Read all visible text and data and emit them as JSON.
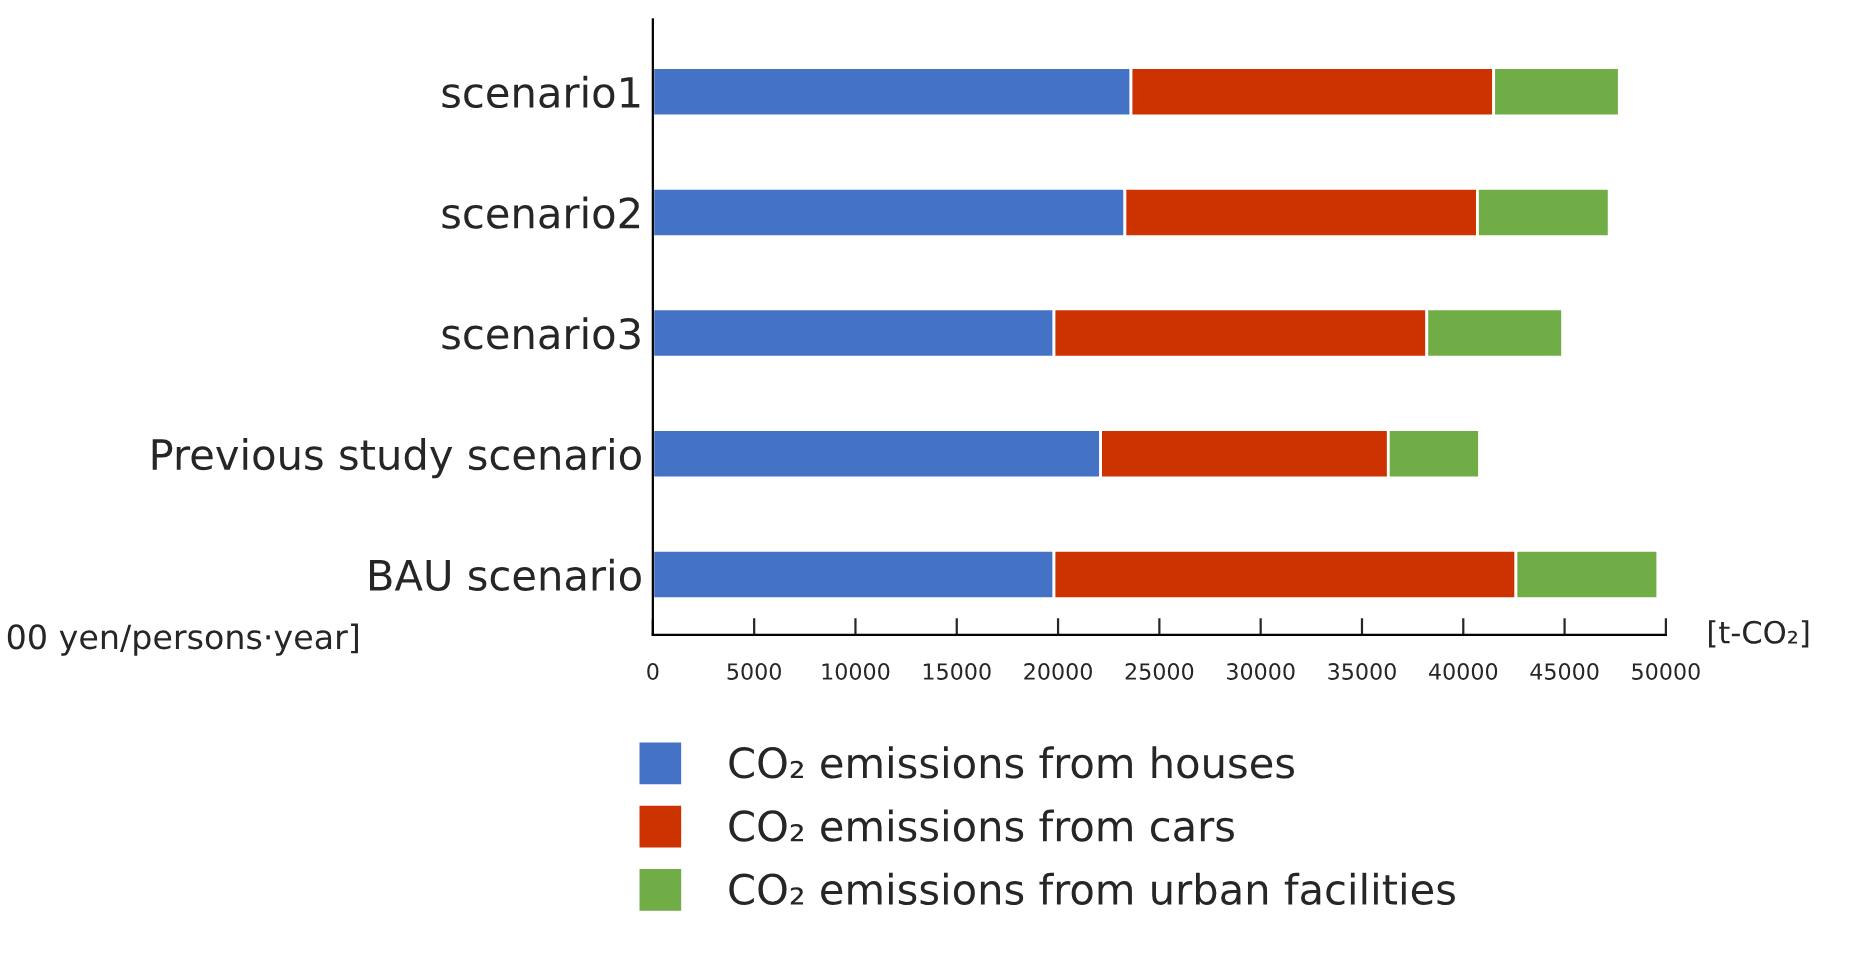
{
  "chart_data": {
    "type": "bar",
    "orientation": "horizontal",
    "stacked": true,
    "categories": [
      "scenario1",
      "scenario2",
      "scenario3",
      "Previous study scenario",
      "BAU scenario"
    ],
    "series": [
      {
        "name": "CO₂ emissions from houses",
        "color": "#4472c4",
        "values": [
          23600,
          23300,
          19800,
          22100,
          19800
        ]
      },
      {
        "name": "CO₂ emissions from cars",
        "color": "#cc3300",
        "values": [
          17900,
          17400,
          18400,
          14200,
          22800
        ]
      },
      {
        "name": "CO₂ emissions from urban facilities",
        "color": "#70ad47",
        "values": [
          6200,
          6500,
          6700,
          4500,
          7000
        ]
      }
    ],
    "xlabel": "[t-CO₂]",
    "annotations": [
      "00 yen/persons·year]"
    ],
    "xlim": [
      0,
      50000
    ],
    "xticks": [
      0,
      5000,
      10000,
      15000,
      20000,
      25000,
      30000,
      35000,
      40000,
      45000,
      50000
    ],
    "grid": false,
    "legend": "bottom",
    "marker": "square"
  }
}
